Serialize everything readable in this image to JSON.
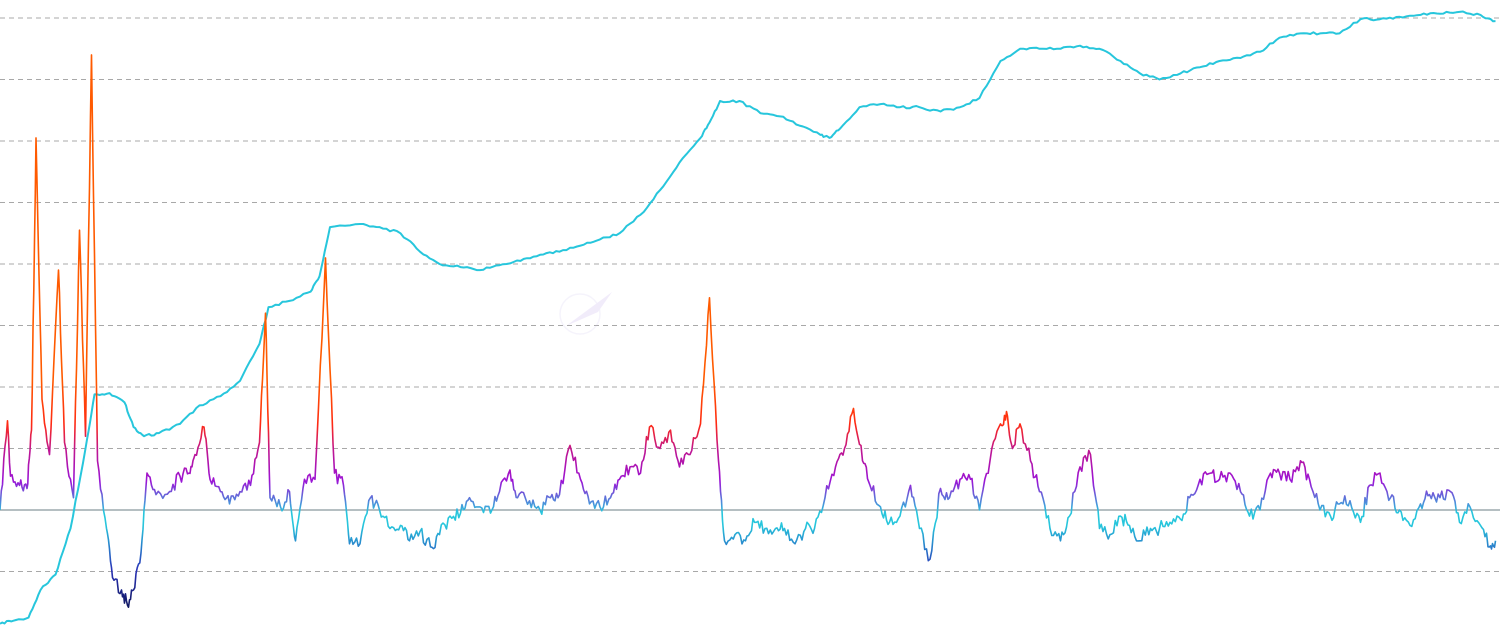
{
  "colors": {
    "background": "#ffffff",
    "gridline": "#a8a8a8",
    "baseline": "#6b7f86",
    "price_line": "#27c6dc",
    "oscillator_low": "#0b1250",
    "oscillator_mid_low": "#2a33b8",
    "oscillator_cyan": "#27c6dc",
    "oscillator_purple": "#9b14d6",
    "oscillator_magenta": "#c0158f",
    "oscillator_red": "#ff2a12",
    "oscillator_orange": "#ff5a00"
  },
  "chart_data": {
    "type": "line",
    "title": "",
    "xlabel": "",
    "ylabel": "",
    "grid": true,
    "legend": "none",
    "x_range": [
      0,
      100
    ],
    "y_range": [
      -2,
      8
    ],
    "horizontal_gridlines": [
      -1,
      1,
      2,
      3,
      4,
      5,
      6,
      7,
      8
    ],
    "baseline": 0,
    "series": [
      {
        "role": "smoothed-trend",
        "points": [
          [
            0.0,
            -1.85
          ],
          [
            0.9,
            -1.8
          ],
          [
            1.9,
            -1.75
          ],
          [
            2.7,
            -1.3
          ],
          [
            3.7,
            -1.05
          ],
          [
            4.7,
            -0.3
          ],
          [
            5.7,
            1.0
          ],
          [
            6.3,
            1.88
          ],
          [
            7.3,
            1.9
          ],
          [
            8.3,
            1.75
          ],
          [
            8.9,
            1.35
          ],
          [
            9.6,
            1.2
          ],
          [
            10.6,
            1.25
          ],
          [
            12.0,
            1.4
          ],
          [
            13.3,
            1.7
          ],
          [
            14.7,
            1.85
          ],
          [
            16.0,
            2.1
          ],
          [
            17.3,
            2.7
          ],
          [
            17.9,
            3.3
          ],
          [
            19.3,
            3.4
          ],
          [
            20.7,
            3.55
          ],
          [
            21.3,
            3.8
          ],
          [
            22.0,
            4.6
          ],
          [
            24.0,
            4.65
          ],
          [
            25.3,
            4.6
          ],
          [
            26.7,
            4.5
          ],
          [
            28.0,
            4.2
          ],
          [
            29.3,
            4.0
          ],
          [
            30.7,
            3.95
          ],
          [
            32.0,
            3.9
          ],
          [
            33.3,
            3.98
          ],
          [
            34.7,
            4.05
          ],
          [
            36.0,
            4.15
          ],
          [
            37.3,
            4.2
          ],
          [
            38.7,
            4.3
          ],
          [
            40.0,
            4.4
          ],
          [
            41.3,
            4.5
          ],
          [
            42.7,
            4.8
          ],
          [
            44.0,
            5.2
          ],
          [
            45.3,
            5.65
          ],
          [
            46.7,
            6.05
          ],
          [
            47.3,
            6.3
          ],
          [
            48.0,
            6.65
          ],
          [
            49.3,
            6.65
          ],
          [
            50.7,
            6.45
          ],
          [
            52.0,
            6.4
          ],
          [
            53.3,
            6.25
          ],
          [
            54.7,
            6.1
          ],
          [
            55.3,
            6.05
          ],
          [
            56.0,
            6.2
          ],
          [
            57.3,
            6.55
          ],
          [
            58.7,
            6.6
          ],
          [
            60.0,
            6.55
          ],
          [
            61.3,
            6.55
          ],
          [
            62.7,
            6.48
          ],
          [
            64.0,
            6.55
          ],
          [
            65.3,
            6.7
          ],
          [
            66.7,
            7.3
          ],
          [
            68.0,
            7.5
          ],
          [
            69.3,
            7.5
          ],
          [
            70.7,
            7.5
          ],
          [
            72.0,
            7.55
          ],
          [
            73.3,
            7.5
          ],
          [
            74.7,
            7.3
          ],
          [
            76.0,
            7.1
          ],
          [
            77.3,
            7.0
          ],
          [
            78.7,
            7.1
          ],
          [
            80.0,
            7.2
          ],
          [
            81.3,
            7.3
          ],
          [
            82.7,
            7.35
          ],
          [
            84.0,
            7.45
          ],
          [
            85.3,
            7.68
          ],
          [
            86.7,
            7.75
          ],
          [
            88.0,
            7.75
          ],
          [
            89.3,
            7.75
          ],
          [
            90.7,
            7.98
          ],
          [
            92.0,
            7.98
          ],
          [
            93.3,
            8.02
          ],
          [
            94.7,
            8.05
          ],
          [
            96.0,
            8.07
          ],
          [
            97.3,
            8.1
          ],
          [
            98.7,
            8.05
          ],
          [
            99.7,
            7.95
          ]
        ]
      },
      {
        "role": "oscillator",
        "points": [
          [
            0.0,
            0.0
          ],
          [
            0.5,
            1.45
          ],
          [
            0.7,
            0.55
          ],
          [
            1.3,
            0.4
          ],
          [
            1.8,
            0.35
          ],
          [
            2.1,
            1.3
          ],
          [
            2.4,
            6.05
          ],
          [
            2.8,
            1.8
          ],
          [
            3.3,
            0.9
          ],
          [
            3.9,
            3.9
          ],
          [
            4.3,
            1.1
          ],
          [
            4.9,
            0.2
          ],
          [
            5.3,
            4.55
          ],
          [
            5.7,
            1.2
          ],
          [
            6.1,
            7.4
          ],
          [
            6.5,
            0.8
          ],
          [
            7.1,
            -0.3
          ],
          [
            7.5,
            -1.1
          ],
          [
            8.1,
            -1.3
          ],
          [
            8.5,
            -1.55
          ],
          [
            8.9,
            -1.3
          ],
          [
            9.4,
            -0.7
          ],
          [
            9.8,
            0.6
          ],
          [
            10.4,
            0.25
          ],
          [
            11.3,
            0.3
          ],
          [
            12.0,
            0.55
          ],
          [
            12.6,
            0.6
          ],
          [
            13.0,
            0.9
          ],
          [
            13.6,
            1.35
          ],
          [
            14.0,
            0.5
          ],
          [
            14.7,
            0.3
          ],
          [
            15.3,
            0.1
          ],
          [
            16.0,
            0.3
          ],
          [
            16.7,
            0.4
          ],
          [
            17.3,
            1.1
          ],
          [
            17.7,
            3.2
          ],
          [
            18.0,
            0.2
          ],
          [
            18.7,
            0.05
          ],
          [
            19.3,
            0.3
          ],
          [
            19.7,
            -0.5
          ],
          [
            20.3,
            0.5
          ],
          [
            21.0,
            0.5
          ],
          [
            21.7,
            4.1
          ],
          [
            22.3,
            0.6
          ],
          [
            22.9,
            0.4
          ],
          [
            23.3,
            -0.55
          ],
          [
            24.0,
            -0.55
          ],
          [
            24.7,
            0.2
          ],
          [
            25.3,
            0.0
          ],
          [
            26.0,
            -0.3
          ],
          [
            26.7,
            -0.25
          ],
          [
            27.3,
            -0.5
          ],
          [
            28.0,
            -0.35
          ],
          [
            28.7,
            -0.6
          ],
          [
            29.3,
            -0.4
          ],
          [
            30.0,
            -0.1
          ],
          [
            30.7,
            -0.05
          ],
          [
            31.3,
            0.2
          ],
          [
            32.0,
            0.05
          ],
          [
            32.7,
            -0.05
          ],
          [
            33.3,
            0.3
          ],
          [
            34.0,
            0.65
          ],
          [
            34.5,
            0.2
          ],
          [
            35.3,
            0.15
          ],
          [
            36.0,
            0.0
          ],
          [
            36.7,
            0.2
          ],
          [
            37.3,
            0.25
          ],
          [
            38.0,
            1.05
          ],
          [
            38.7,
            0.5
          ],
          [
            39.3,
            0.1
          ],
          [
            40.0,
            0.05
          ],
          [
            40.7,
            0.2
          ],
          [
            41.3,
            0.5
          ],
          [
            42.0,
            0.7
          ],
          [
            42.7,
            0.6
          ],
          [
            43.3,
            1.35
          ],
          [
            44.0,
            1.0
          ],
          [
            44.7,
            1.3
          ],
          [
            45.3,
            0.7
          ],
          [
            46.0,
            0.9
          ],
          [
            46.7,
            1.4
          ],
          [
            47.3,
            3.45
          ],
          [
            47.9,
            0.8
          ],
          [
            48.3,
            -0.5
          ],
          [
            49.0,
            -0.4
          ],
          [
            49.7,
            -0.5
          ],
          [
            50.3,
            -0.2
          ],
          [
            51.0,
            -0.3
          ],
          [
            51.7,
            -0.3
          ],
          [
            52.3,
            -0.3
          ],
          [
            53.0,
            -0.55
          ],
          [
            53.7,
            -0.3
          ],
          [
            54.3,
            -0.3
          ],
          [
            55.0,
            0.2
          ],
          [
            55.7,
            0.7
          ],
          [
            56.3,
            1.0
          ],
          [
            56.9,
            1.65
          ],
          [
            57.5,
            0.8
          ],
          [
            58.0,
            0.4
          ],
          [
            58.7,
            0.05
          ],
          [
            59.3,
            -0.2
          ],
          [
            60.0,
            -0.1
          ],
          [
            60.7,
            0.4
          ],
          [
            61.3,
            -0.3
          ],
          [
            62.0,
            -0.8
          ],
          [
            62.7,
            0.35
          ],
          [
            63.3,
            0.2
          ],
          [
            64.0,
            0.5
          ],
          [
            64.7,
            0.5
          ],
          [
            65.3,
            0.0
          ],
          [
            66.0,
            0.8
          ],
          [
            66.7,
            1.4
          ],
          [
            67.1,
            1.6
          ],
          [
            67.5,
            1.0
          ],
          [
            68.0,
            1.4
          ],
          [
            68.7,
            0.8
          ],
          [
            69.3,
            0.3
          ],
          [
            70.0,
            -0.3
          ],
          [
            70.7,
            -0.5
          ],
          [
            71.3,
            -0.1
          ],
          [
            72.0,
            0.7
          ],
          [
            72.7,
            0.9
          ],
          [
            73.3,
            -0.3
          ],
          [
            74.0,
            -0.4
          ],
          [
            74.7,
            -0.1
          ],
          [
            75.3,
            -0.25
          ],
          [
            76.0,
            -0.5
          ],
          [
            76.7,
            -0.3
          ],
          [
            77.3,
            -0.3
          ],
          [
            78.0,
            -0.2
          ],
          [
            78.7,
            -0.15
          ],
          [
            79.3,
            0.2
          ],
          [
            80.0,
            0.5
          ],
          [
            80.7,
            0.6
          ],
          [
            81.3,
            0.5
          ],
          [
            82.0,
            0.6
          ],
          [
            82.7,
            0.3
          ],
          [
            83.3,
            -0.1
          ],
          [
            84.0,
            0.0
          ],
          [
            84.7,
            0.6
          ],
          [
            85.3,
            0.6
          ],
          [
            86.0,
            0.5
          ],
          [
            86.7,
            0.8
          ],
          [
            87.3,
            0.5
          ],
          [
            88.0,
            0.0
          ],
          [
            88.7,
            -0.1
          ],
          [
            89.3,
            0.1
          ],
          [
            90.0,
            0.15
          ],
          [
            90.7,
            -0.2
          ],
          [
            91.3,
            0.4
          ],
          [
            92.0,
            0.6
          ],
          [
            92.7,
            0.2
          ],
          [
            93.3,
            0.0
          ],
          [
            94.0,
            -0.25
          ],
          [
            94.7,
            0.1
          ],
          [
            95.3,
            0.25
          ],
          [
            96.0,
            0.2
          ],
          [
            96.7,
            0.3
          ],
          [
            97.3,
            -0.2
          ],
          [
            98.0,
            0.05
          ],
          [
            98.7,
            -0.25
          ],
          [
            99.3,
            -0.6
          ],
          [
            99.7,
            -0.5
          ]
        ]
      }
    ]
  }
}
